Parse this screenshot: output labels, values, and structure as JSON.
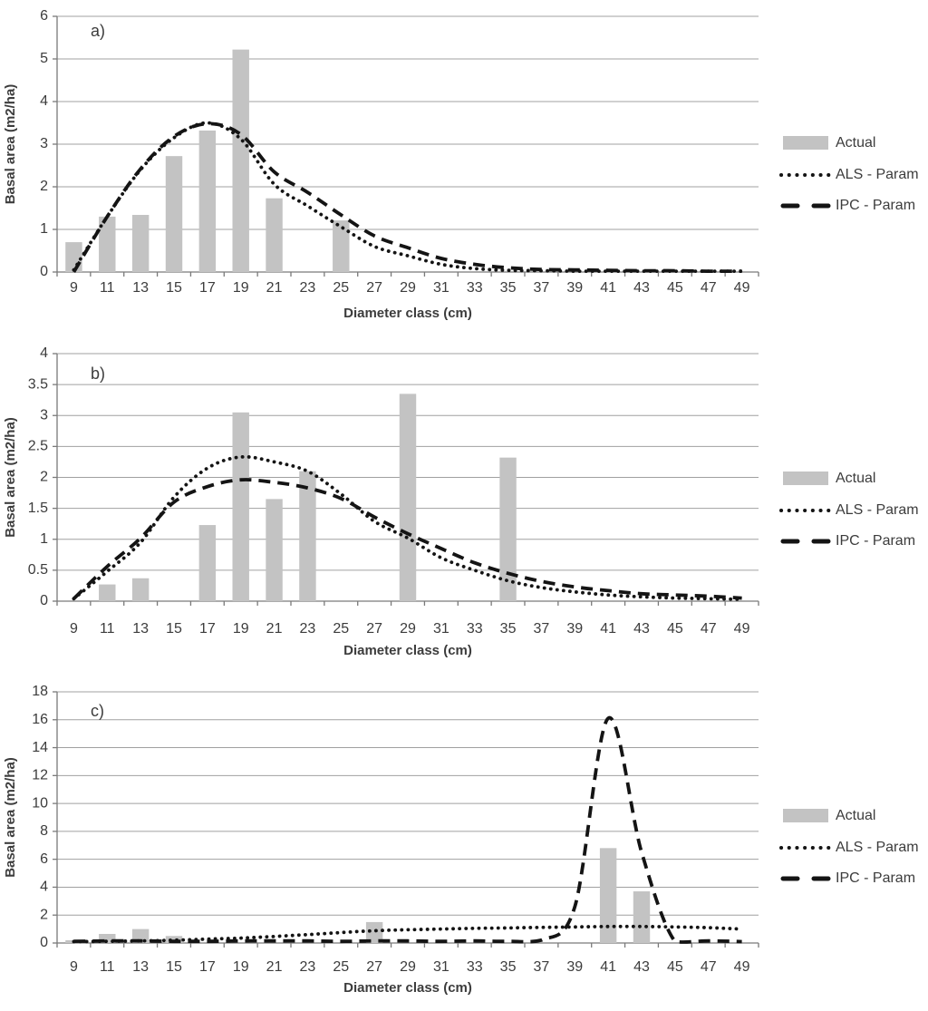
{
  "figure": {
    "ylabel": "Basal area (m2/ha)",
    "xlabel": "Diameter class (cm)",
    "legend": [
      "Actual",
      "ALS - Param",
      "IPC - Param"
    ]
  },
  "colors": {
    "bar": "#c3c3c3",
    "curve": "#141414",
    "grid": "#a0a0a0",
    "axis": "#7a7a7a",
    "text": "#3c3c3c"
  },
  "chart_data": [
    {
      "type": "bar",
      "panel_label": "a)",
      "title": "",
      "xlabel": "Diameter class (cm)",
      "ylabel": "Basal area (m2/ha)",
      "ylim": [
        0,
        6
      ],
      "ytick_step": 1,
      "grid": true,
      "legend_position": "right",
      "legend": [
        "Actual",
        "ALS - Param",
        "IPC - Param"
      ],
      "categories": [
        9,
        11,
        13,
        15,
        17,
        19,
        21,
        23,
        25,
        27,
        29,
        31,
        33,
        35,
        37,
        39,
        41,
        43,
        45,
        47,
        49
      ],
      "series": [
        {
          "name": "Actual",
          "type": "bar",
          "values": [
            0.7,
            1.3,
            1.34,
            2.72,
            3.32,
            5.22,
            1.73,
            null,
            1.21,
            null,
            null,
            null,
            null,
            null,
            null,
            null,
            null,
            null,
            null,
            null,
            null
          ]
        },
        {
          "name": "ALS - Param",
          "type": "line-dotted",
          "values": [
            0.05,
            1.3,
            2.4,
            3.15,
            3.5,
            3.12,
            2.06,
            1.55,
            1.06,
            0.6,
            0.38,
            0.18,
            0.08,
            0.04,
            0.03,
            0.02,
            0.02,
            0.02,
            0.02,
            0.02,
            0.02
          ]
        },
        {
          "name": "IPC - Param",
          "type": "line-dashed",
          "values": [
            0.0,
            1.3,
            2.42,
            3.18,
            3.48,
            3.23,
            2.35,
            1.87,
            1.34,
            0.85,
            0.57,
            0.32,
            0.18,
            0.1,
            0.06,
            0.05,
            0.04,
            0.03,
            0.03,
            0.02,
            0.02
          ]
        }
      ]
    },
    {
      "type": "bar",
      "panel_label": "b)",
      "title": "",
      "xlabel": "Diameter class (cm)",
      "ylabel": "Basal area (m2/ha)",
      "ylim": [
        0,
        4
      ],
      "ytick_step": 0.5,
      "grid": true,
      "legend_position": "right",
      "legend": [
        "Actual",
        "ALS - Param",
        "IPC - Param"
      ],
      "categories": [
        9,
        11,
        13,
        15,
        17,
        19,
        21,
        23,
        25,
        27,
        29,
        31,
        33,
        35,
        37,
        39,
        41,
        43,
        45,
        47,
        49
      ],
      "series": [
        {
          "name": "Actual",
          "type": "bar",
          "values": [
            null,
            0.27,
            0.37,
            null,
            1.23,
            3.05,
            1.65,
            2.1,
            null,
            null,
            3.35,
            null,
            null,
            2.32,
            null,
            null,
            null,
            null,
            null,
            null,
            null
          ]
        },
        {
          "name": "ALS - Param",
          "type": "line-dotted",
          "values": [
            0.04,
            0.48,
            0.95,
            1.68,
            2.15,
            2.33,
            2.25,
            2.1,
            1.73,
            1.29,
            1.02,
            0.7,
            0.5,
            0.33,
            0.22,
            0.15,
            0.1,
            0.07,
            0.05,
            0.04,
            0.03
          ]
        },
        {
          "name": "IPC - Param",
          "type": "line-dashed",
          "values": [
            0.04,
            0.56,
            1.02,
            1.6,
            1.85,
            1.96,
            1.92,
            1.83,
            1.66,
            1.36,
            1.09,
            0.85,
            0.62,
            0.45,
            0.32,
            0.23,
            0.17,
            0.12,
            0.1,
            0.08,
            0.05
          ]
        }
      ]
    },
    {
      "type": "bar",
      "panel_label": "c)",
      "title": "",
      "xlabel": "Diameter class (cm)",
      "ylabel": "Basal area (m2/ha)",
      "ylim": [
        0,
        18
      ],
      "ytick_step": 2,
      "grid": true,
      "legend_position": "right",
      "legend": [
        "Actual",
        "ALS - Param",
        "IPC - Param"
      ],
      "categories": [
        9,
        11,
        13,
        15,
        17,
        19,
        21,
        23,
        25,
        27,
        29,
        31,
        33,
        35,
        37,
        39,
        41,
        43,
        45,
        47,
        49
      ],
      "series": [
        {
          "name": "Actual",
          "type": "bar",
          "values": [
            0.2,
            0.65,
            1.0,
            0.5,
            null,
            null,
            null,
            null,
            null,
            1.5,
            null,
            null,
            null,
            null,
            null,
            null,
            6.8,
            3.7,
            null,
            null,
            null
          ]
        },
        {
          "name": "ALS - Param",
          "type": "line-dotted",
          "values": [
            0.1,
            0.12,
            0.15,
            0.2,
            0.28,
            0.35,
            0.47,
            0.6,
            0.75,
            0.88,
            0.95,
            1.0,
            1.05,
            1.08,
            1.12,
            1.15,
            1.18,
            1.18,
            1.15,
            1.1,
            1.0
          ]
        },
        {
          "name": "IPC - Param",
          "type": "line-dashed",
          "values": [
            0.12,
            0.15,
            0.15,
            0.12,
            0.12,
            0.15,
            0.15,
            0.15,
            0.12,
            0.15,
            0.15,
            0.12,
            0.15,
            0.12,
            0.2,
            2.6,
            16.1,
            6.5,
            0.1,
            0.15,
            0.1
          ]
        }
      ]
    }
  ]
}
